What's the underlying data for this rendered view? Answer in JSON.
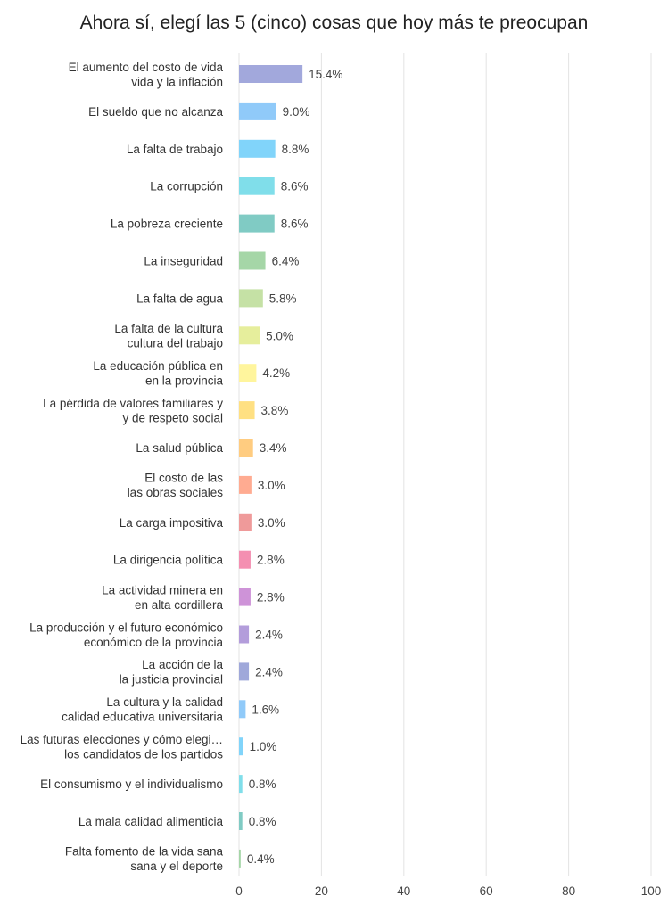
{
  "chart_data": {
    "type": "bar",
    "orientation": "horizontal",
    "title": "Ahora sí, elegí las 5 (cinco) cosas que hoy más te preocupan",
    "xlim": [
      0,
      100
    ],
    "xticks": [
      "0",
      "20",
      "40",
      "60",
      "80",
      "100"
    ],
    "grid": true,
    "categories": [
      [
        "El aumento del costo de vida",
        "vida y la inflación"
      ],
      [
        "El sueldo que no alcanza"
      ],
      [
        "La falta de trabajo"
      ],
      [
        "La corrupción"
      ],
      [
        "La pobreza creciente"
      ],
      [
        "La inseguridad"
      ],
      [
        "La falta de agua"
      ],
      [
        "La falta de la cultura",
        "cultura del trabajo"
      ],
      [
        "La educación pública en",
        "en la provincia"
      ],
      [
        "La pérdida de valores familiares y",
        "y de respeto social"
      ],
      [
        "La salud pública"
      ],
      [
        "El costo de las",
        "las obras sociales"
      ],
      [
        "La carga impositiva"
      ],
      [
        "La dirigencia política"
      ],
      [
        "La actividad minera en",
        "en alta cordillera"
      ],
      [
        "La producción y el futuro económico",
        "económico de la provincia"
      ],
      [
        "La acción de la",
        "la justicia provincial"
      ],
      [
        "La cultura y la calidad",
        "calidad educativa universitaria"
      ],
      [
        "Las futuras elecciones y cómo elegi…",
        "los candidatos de los partidos"
      ],
      [
        "El consumismo y el individualismo"
      ],
      [
        "La mala calidad alimenticia"
      ],
      [
        "Falta fomento de la vida sana",
        "sana y el deporte"
      ]
    ],
    "values": [
      15.4,
      9.0,
      8.8,
      8.6,
      8.6,
      6.4,
      5.8,
      5.0,
      4.2,
      3.8,
      3.4,
      3.0,
      3.0,
      2.8,
      2.8,
      2.4,
      2.4,
      1.6,
      1.0,
      0.8,
      0.8,
      0.4
    ],
    "value_labels": [
      "15.4%",
      "9.0%",
      "8.8%",
      "8.6%",
      "8.6%",
      "6.4%",
      "5.8%",
      "5.0%",
      "4.2%",
      "3.8%",
      "3.4%",
      "3.0%",
      "3.0%",
      "2.8%",
      "2.8%",
      "2.4%",
      "2.4%",
      "1.6%",
      "1.0%",
      "0.8%",
      "0.8%",
      "0.4%"
    ],
    "bar_colors": [
      "#a2a8dc",
      "#90caf9",
      "#81d4fa",
      "#80deea",
      "#80cbc4",
      "#a5d6a7",
      "#c5e1a5",
      "#e6ee9c",
      "#fff59d",
      "#ffe082",
      "#ffcc80",
      "#ffab91",
      "#ef9a9a",
      "#f48fb1",
      "#ce93d8",
      "#b39ddb",
      "#9fa8da",
      "#90caf9",
      "#81d4fa",
      "#80deea",
      "#80cbc4",
      "#a5d6a7"
    ]
  }
}
